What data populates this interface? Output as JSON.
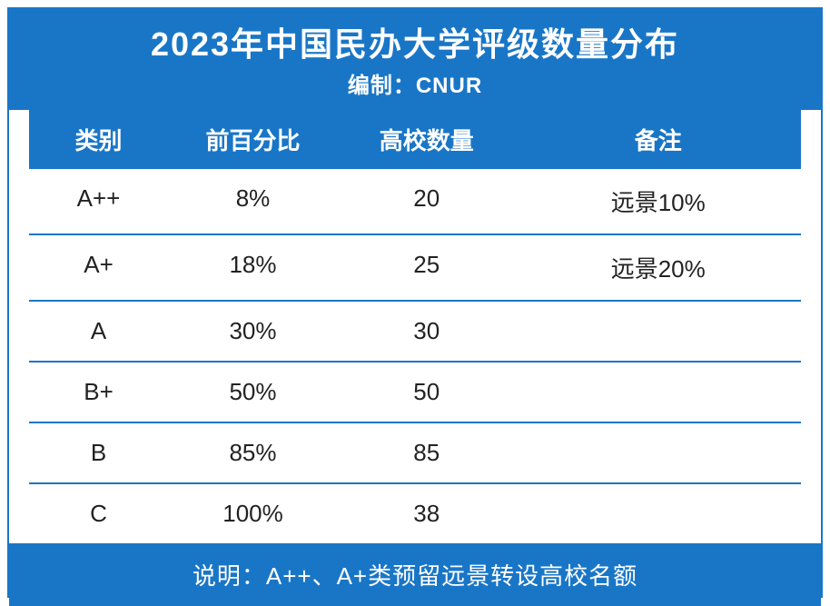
{
  "header": {
    "title": "2023年中国民办大学评级数量分布",
    "subtitle": "编制：CNUR"
  },
  "columns": {
    "category": "类别",
    "percent": "前百分比",
    "count": "高校数量",
    "remark": "备注"
  },
  "rows": [
    {
      "category": "A++",
      "percent": "8%",
      "count": "20",
      "remark": "远景10%"
    },
    {
      "category": "A+",
      "percent": "18%",
      "count": "25",
      "remark": "远景20%"
    },
    {
      "category": "A",
      "percent": "30%",
      "count": "30",
      "remark": ""
    },
    {
      "category": "B+",
      "percent": "50%",
      "count": "50",
      "remark": ""
    },
    {
      "category": "B",
      "percent": "85%",
      "count": "85",
      "remark": ""
    },
    {
      "category": "C",
      "percent": "100%",
      "count": "38",
      "remark": ""
    }
  ],
  "footer": {
    "note": "说明：A++、A+类预留远景转设高校名额"
  },
  "style": {
    "primary_color": "#1976c7",
    "background_color": "#ffffff",
    "text_color": "#222222",
    "title_fontsize": 36,
    "subtitle_fontsize": 24,
    "header_fontsize": 26,
    "cell_fontsize": 26,
    "footer_fontsize": 26,
    "border_width": 2,
    "column_widths": {
      "category": "18%",
      "percent": "22%",
      "count": "23%",
      "remark": "37%"
    }
  }
}
